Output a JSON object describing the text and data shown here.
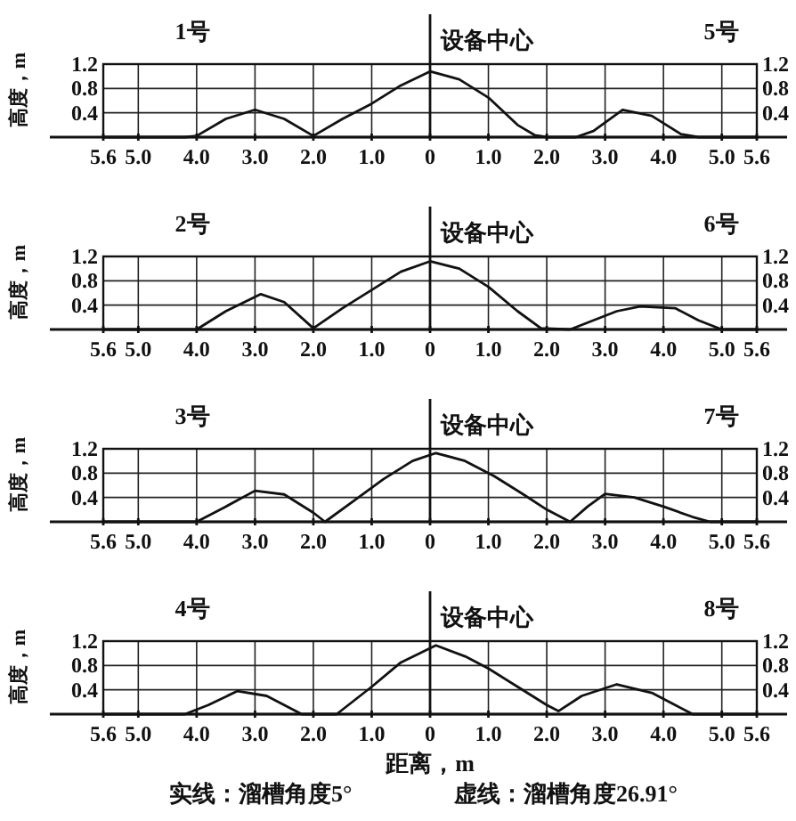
{
  "chart_data": [
    {
      "type": "line",
      "ylabel": "高度，m",
      "annotations": [
        "1号",
        "5号"
      ],
      "ref_lines": [
        {
          "axis": "x",
          "value": 0,
          "label": "设备中心"
        }
      ],
      "x": [
        -5.6,
        -4.2,
        -4.0,
        -3.5,
        -3.0,
        -2.5,
        -2.0,
        -1.5,
        -1.0,
        -0.5,
        0,
        0.5,
        1.0,
        1.5,
        1.8,
        2.0,
        2.5,
        2.8,
        3.3,
        3.8,
        4.3,
        4.6,
        5.6
      ],
      "values": [
        0,
        0,
        0.02,
        0.3,
        0.45,
        0.3,
        0.02,
        0.3,
        0.55,
        0.85,
        1.08,
        0.95,
        0.65,
        0.2,
        0.03,
        0,
        0,
        0.1,
        0.45,
        0.35,
        0.05,
        0,
        0
      ],
      "xlim": [
        -5.6,
        5.6
      ],
      "ylim": [
        0,
        1.2
      ],
      "y2lim": [
        0,
        1.2
      ],
      "grid": true,
      "xticks": [
        {
          "value": -5.6,
          "label": "5.6"
        },
        {
          "value": -5.0,
          "label": "5.0"
        },
        {
          "value": -4.0,
          "label": "4.0"
        },
        {
          "value": -3.0,
          "label": "3.0"
        },
        {
          "value": -2.0,
          "label": "2.0"
        },
        {
          "value": -1.0,
          "label": "1.0"
        },
        {
          "value": 0,
          "label": "0"
        },
        {
          "value": 1.0,
          "label": "1.0"
        },
        {
          "value": 2.0,
          "label": "2.0"
        },
        {
          "value": 3.0,
          "label": "3.0"
        },
        {
          "value": 4.0,
          "label": "4.0"
        },
        {
          "value": 5.0,
          "label": "5.0"
        },
        {
          "value": 5.6,
          "label": "5.6"
        }
      ],
      "yticks": [
        0.4,
        0.8,
        1.2
      ],
      "y2ticks": [
        0.4,
        0.8,
        1.2
      ]
    },
    {
      "type": "line",
      "ylabel": "高度，m",
      "annotations": [
        "2号",
        "6号"
      ],
      "ref_lines": [
        {
          "axis": "x",
          "value": 0,
          "label": "设备中心"
        }
      ],
      "x": [
        -5.6,
        -4.0,
        -3.5,
        -2.9,
        -2.5,
        -2.0,
        -1.5,
        -1.0,
        -0.5,
        0,
        0.5,
        1.0,
        1.5,
        1.9,
        2.4,
        2.8,
        3.2,
        3.6,
        4.2,
        4.6,
        5.0,
        5.6
      ],
      "values": [
        0,
        0,
        0.3,
        0.58,
        0.45,
        0.02,
        0.35,
        0.65,
        0.95,
        1.12,
        1.0,
        0.7,
        0.3,
        0.02,
        0,
        0.15,
        0.3,
        0.38,
        0.35,
        0.15,
        0,
        0
      ],
      "xlim": [
        -5.6,
        5.6
      ],
      "ylim": [
        0,
        1.2
      ],
      "y2lim": [
        0,
        1.2
      ],
      "grid": true,
      "xticks": [
        {
          "value": -5.6,
          "label": "5.6"
        },
        {
          "value": -5.0,
          "label": "5.0"
        },
        {
          "value": -4.0,
          "label": "4.0"
        },
        {
          "value": -3.0,
          "label": "3.0"
        },
        {
          "value": -2.0,
          "label": "2.0"
        },
        {
          "value": -1.0,
          "label": "1.0"
        },
        {
          "value": 0,
          "label": "0"
        },
        {
          "value": 1.0,
          "label": "1.0"
        },
        {
          "value": 2.0,
          "label": "2.0"
        },
        {
          "value": 3.0,
          "label": "3.0"
        },
        {
          "value": 4.0,
          "label": "4.0"
        },
        {
          "value": 5.0,
          "label": "5.0"
        },
        {
          "value": 5.6,
          "label": "5.6"
        }
      ],
      "yticks": [
        0.4,
        0.8,
        1.2
      ],
      "y2ticks": [
        0.4,
        0.8,
        1.2
      ]
    },
    {
      "type": "line",
      "ylabel": "高度，m",
      "annotations": [
        "3号",
        "7号"
      ],
      "ref_lines": [
        {
          "axis": "x",
          "value": 0,
          "label": "设备中心"
        }
      ],
      "x": [
        -5.6,
        -4.0,
        -3.5,
        -3.0,
        -2.5,
        -2.0,
        -1.8,
        -1.3,
        -0.8,
        -0.3,
        0.1,
        0.6,
        1.1,
        1.6,
        2.0,
        2.4,
        2.7,
        3.0,
        3.5,
        4.0,
        4.5,
        4.8,
        5.6
      ],
      "values": [
        0,
        0,
        0.25,
        0.51,
        0.45,
        0.15,
        0,
        0.35,
        0.7,
        1.0,
        1.13,
        1.0,
        0.75,
        0.45,
        0.2,
        0,
        0.25,
        0.46,
        0.4,
        0.25,
        0.08,
        0,
        0
      ],
      "xlim": [
        -5.6,
        5.6
      ],
      "ylim": [
        0,
        1.2
      ],
      "y2lim": [
        0,
        1.2
      ],
      "grid": true,
      "xticks": [
        {
          "value": -5.6,
          "label": "5.6"
        },
        {
          "value": -5.0,
          "label": "5.0"
        },
        {
          "value": -4.0,
          "label": "4.0"
        },
        {
          "value": -3.0,
          "label": "3.0"
        },
        {
          "value": -2.0,
          "label": "2.0"
        },
        {
          "value": -1.0,
          "label": "1.0"
        },
        {
          "value": 0,
          "label": "0"
        },
        {
          "value": 1.0,
          "label": "1.0"
        },
        {
          "value": 2.0,
          "label": "2.0"
        },
        {
          "value": 3.0,
          "label": "3.0"
        },
        {
          "value": 4.0,
          "label": "4.0"
        },
        {
          "value": 5.0,
          "label": "5.0"
        },
        {
          "value": 5.6,
          "label": "5.6"
        }
      ],
      "yticks": [
        0.4,
        0.8,
        1.2
      ],
      "y2ticks": [
        0.4,
        0.8,
        1.2
      ]
    },
    {
      "type": "line",
      "ylabel": "高度，m",
      "xlabel": "距离，m",
      "annotations": [
        "4号",
        "8号",
        "实线：溜槽角度5°",
        "虚线：溜槽角度26.91°"
      ],
      "ref_lines": [
        {
          "axis": "x",
          "value": 0,
          "label": "设备中心"
        }
      ],
      "x": [
        -5.6,
        -4.2,
        -3.8,
        -3.3,
        -2.8,
        -2.2,
        -1.6,
        -1.0,
        -0.5,
        0.1,
        0.6,
        1.0,
        1.5,
        2.0,
        2.2,
        2.6,
        3.2,
        3.8,
        4.2,
        4.5,
        5.6
      ],
      "values": [
        0,
        0,
        0.15,
        0.38,
        0.3,
        0,
        0,
        0.45,
        0.85,
        1.13,
        0.95,
        0.75,
        0.45,
        0.15,
        0.05,
        0.3,
        0.49,
        0.35,
        0.15,
        0,
        0
      ],
      "xlim": [
        -5.6,
        5.6
      ],
      "ylim": [
        0,
        1.2
      ],
      "y2lim": [
        0,
        1.2
      ],
      "grid": true,
      "xticks": [
        {
          "value": -5.6,
          "label": "5.6"
        },
        {
          "value": -5.0,
          "label": "5.0"
        },
        {
          "value": -4.0,
          "label": "4.0"
        },
        {
          "value": -3.0,
          "label": "3.0"
        },
        {
          "value": -2.0,
          "label": "2.0"
        },
        {
          "value": -1.0,
          "label": "1.0"
        },
        {
          "value": 0,
          "label": "0"
        },
        {
          "value": 1.0,
          "label": "1.0"
        },
        {
          "value": 2.0,
          "label": "2.0"
        },
        {
          "value": 3.0,
          "label": "3.0"
        },
        {
          "value": 4.0,
          "label": "4.0"
        },
        {
          "value": 5.0,
          "label": "5.0"
        },
        {
          "value": 5.6,
          "label": "5.6"
        }
      ],
      "yticks": [
        0.4,
        0.8,
        1.2
      ],
      "y2ticks": [
        0.4,
        0.8,
        1.2
      ]
    }
  ]
}
